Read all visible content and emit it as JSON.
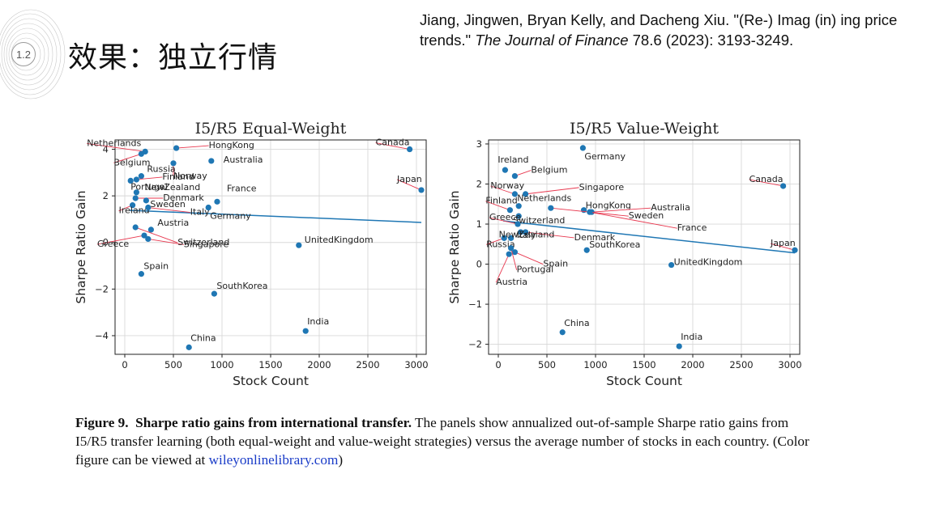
{
  "slide": {
    "number": "1.2",
    "title": "效果：独立行情",
    "citation": {
      "authors": "Jiang, Jingwen, Bryan Kelly, and Dacheng Xiu.",
      "article": "\"(Re-) Imag (in) ing price trends.\"",
      "journal": "The Journal of Finance",
      "details": "78.6 (2023): 3193-3249."
    }
  },
  "caption": {
    "label": "Figure 9.",
    "heading": "Sharpe ratio gains from international transfer.",
    "body": "The panels show annualized out-of-sample Sharpe ratio gains from I5/R5 transfer learning (both equal-weight and value-weight strategies) versus the average number of stocks in each country. (Color figure can be viewed at",
    "link": "wileyonlinelibrary.com",
    "tail": ")"
  },
  "chart_data": [
    {
      "type": "scatter",
      "title": "I5/R5 Equal-Weight",
      "xlabel": "Stock Count",
      "ylabel": "Sharpe Ratio Gain",
      "xlim": [
        -100,
        3100
      ],
      "ylim": [
        -4.8,
        4.4
      ],
      "xticks": [
        0,
        500,
        1000,
        1500,
        2000,
        2500,
        3000
      ],
      "yticks": [
        -4,
        -2,
        0,
        2,
        4
      ],
      "grid": true,
      "point_color": "#1f77b4",
      "arrow_color": "#e8384f",
      "trend_line": {
        "x": [
          50,
          3050
        ],
        "y": [
          1.38,
          0.86
        ]
      },
      "points": [
        {
          "label": "Netherlands",
          "x": 210,
          "y": 3.9
        },
        {
          "label": "Belgium",
          "x": 170,
          "y": 3.8
        },
        {
          "label": "HongKong",
          "x": 530,
          "y": 4.05
        },
        {
          "label": "Norway",
          "x": 500,
          "y": 3.4
        },
        {
          "label": "Australia",
          "x": 890,
          "y": 3.5
        },
        {
          "label": "Russia",
          "x": 170,
          "y": 2.85
        },
        {
          "label": "Finland",
          "x": 120,
          "y": 2.7
        },
        {
          "label": "Portugal",
          "x": 60,
          "y": 2.65
        },
        {
          "label": "France",
          "x": 950,
          "y": 1.75
        },
        {
          "label": "NewZealand",
          "x": 120,
          "y": 2.15
        },
        {
          "label": "Denmark",
          "x": 110,
          "y": 1.9
        },
        {
          "label": "Sweden",
          "x": 220,
          "y": 1.8
        },
        {
          "label": "Ireland",
          "x": 80,
          "y": 1.6
        },
        {
          "label": "Italy",
          "x": 240,
          "y": 1.5
        },
        {
          "label": "Germany",
          "x": 860,
          "y": 1.5
        },
        {
          "label": "Austria",
          "x": 270,
          "y": 0.55
        },
        {
          "label": "Singapore",
          "x": 240,
          "y": 0.15
        },
        {
          "label": "Greece",
          "x": 200,
          "y": 0.3
        },
        {
          "label": "Switzerland",
          "x": 110,
          "y": 0.65
        },
        {
          "label": "UnitedKingdom",
          "x": 1790,
          "y": -0.12
        },
        {
          "label": "Canada",
          "x": 2930,
          "y": 4.0
        },
        {
          "label": "Japan",
          "x": 3050,
          "y": 2.25
        },
        {
          "label": "Spain",
          "x": 170,
          "y": -1.35
        },
        {
          "label": "SouthKorea",
          "x": 920,
          "y": -2.2
        },
        {
          "label": "India",
          "x": 1860,
          "y": -3.8
        },
        {
          "label": "China",
          "x": 660,
          "y": -4.5
        }
      ]
    },
    {
      "type": "scatter",
      "title": "I5/R5 Value-Weight",
      "xlabel": "Stock Count",
      "ylabel": "Sharpe Ratio Gain",
      "xlim": [
        -100,
        3100
      ],
      "ylim": [
        -2.25,
        3.1
      ],
      "xticks": [
        0,
        500,
        1000,
        1500,
        2000,
        2500,
        3000
      ],
      "yticks": [
        -2,
        -1,
        0,
        1,
        2,
        3
      ],
      "grid": true,
      "point_color": "#1f77b4",
      "arrow_color": "#e8384f",
      "trend_line": {
        "x": [
          50,
          3050
        ],
        "y": [
          1.08,
          0.28
        ]
      },
      "points": [
        {
          "label": "Germany",
          "x": 870,
          "y": 2.9
        },
        {
          "label": "Ireland",
          "x": 70,
          "y": 2.35
        },
        {
          "label": "Belgium",
          "x": 170,
          "y": 2.2
        },
        {
          "label": "Norway",
          "x": 170,
          "y": 1.75
        },
        {
          "label": "Singapore",
          "x": 280,
          "y": 1.75
        },
        {
          "label": "Finland",
          "x": 120,
          "y": 1.35
        },
        {
          "label": "Netherlands",
          "x": 210,
          "y": 1.45
        },
        {
          "label": "Switzerland",
          "x": 210,
          "y": 1.2
        },
        {
          "label": "HongKong",
          "x": 880,
          "y": 1.35
        },
        {
          "label": "Australia",
          "x": 960,
          "y": 1.3
        },
        {
          "label": "Sweden",
          "x": 540,
          "y": 1.4
        },
        {
          "label": "France",
          "x": 940,
          "y": 1.3
        },
        {
          "label": "Greece",
          "x": 200,
          "y": 1.0
        },
        {
          "label": "Denmark",
          "x": 280,
          "y": 0.8
        },
        {
          "label": "Italy",
          "x": 230,
          "y": 0.8
        },
        {
          "label": "Russia",
          "x": 60,
          "y": 0.65
        },
        {
          "label": "NewZealand",
          "x": 130,
          "y": 0.65
        },
        {
          "label": "Spain",
          "x": 170,
          "y": 0.3
        },
        {
          "label": "Portugal",
          "x": 130,
          "y": 0.4
        },
        {
          "label": "Austria",
          "x": 110,
          "y": 0.25
        },
        {
          "label": "SouthKorea",
          "x": 910,
          "y": 0.35
        },
        {
          "label": "UnitedKingdom",
          "x": 1780,
          "y": -0.02
        },
        {
          "label": "Canada",
          "x": 2930,
          "y": 1.95
        },
        {
          "label": "Japan",
          "x": 3050,
          "y": 0.35
        },
        {
          "label": "China",
          "x": 660,
          "y": -1.7
        },
        {
          "label": "India",
          "x": 1860,
          "y": -2.05
        }
      ]
    }
  ]
}
